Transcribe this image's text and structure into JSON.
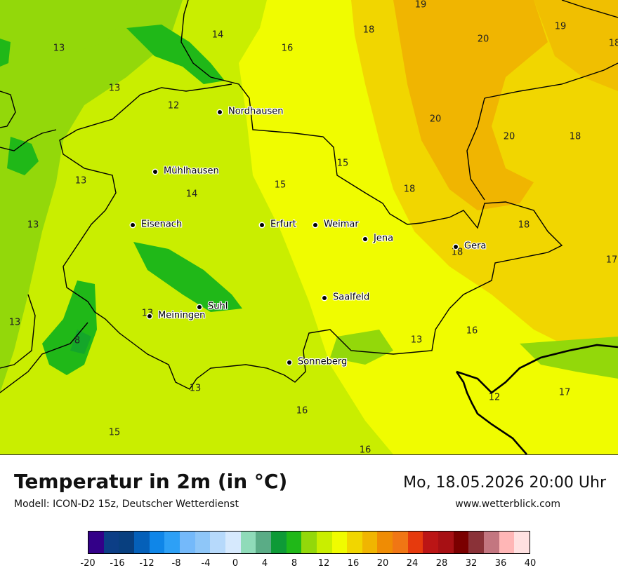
{
  "title": "Temperatur in 2m (in °C)",
  "subtitle": "Modell: ICON-D2 15z, Deutscher Wetterdienst",
  "datetime": "Mo, 18.05.2026 20:00 Uhr",
  "website": "www.wetterblick.com",
  "cities": [
    {
      "name": "Nordhausen"
    },
    {
      "name": "Mühlhausen"
    },
    {
      "name": "Eisenach"
    },
    {
      "name": "Erfurt"
    },
    {
      "name": "Weimar"
    },
    {
      "name": "Jena"
    },
    {
      "name": "Gera"
    },
    {
      "name": "Saalfeld"
    },
    {
      "name": "Suhl"
    },
    {
      "name": "Meiningen"
    },
    {
      "name": "Sonneberg"
    }
  ],
  "temperature_labels": [
    "19",
    "14",
    "18",
    "20",
    "19",
    "13",
    "16",
    "18",
    "13",
    "12",
    "20",
    "20",
    "18",
    "15",
    "13",
    "15",
    "18",
    "14",
    "13",
    "18",
    "18",
    "17",
    "13",
    "13",
    "8",
    "16",
    "13",
    "13",
    "17",
    "12",
    "15",
    "16",
    "16",
    "18"
  ],
  "legend": {
    "ticks": [
      "-20",
      "-16",
      "-12",
      "-8",
      "-4",
      "0",
      "4",
      "8",
      "12",
      "16",
      "20",
      "24",
      "28",
      "32",
      "36",
      "40"
    ],
    "colors": [
      "#330088",
      "#0c3e86",
      "#083f7f",
      "#0560b9",
      "#0f86e8",
      "#2da0f6",
      "#74b9fa",
      "#8ec6f8",
      "#b6d9fb",
      "#d6e9fd",
      "#8fdbb9",
      "#5aac86",
      "#0e9a37",
      "#20b818",
      "#93d80a",
      "#c9ee00",
      "#f0fc00",
      "#f1d600",
      "#f0b501",
      "#ef8c04",
      "#f07614",
      "#e63a0d",
      "#bb1515",
      "#a71014",
      "#7a0000",
      "#8a3238",
      "#c37680",
      "#ffb6b6",
      "#ffe1e1"
    ]
  }
}
